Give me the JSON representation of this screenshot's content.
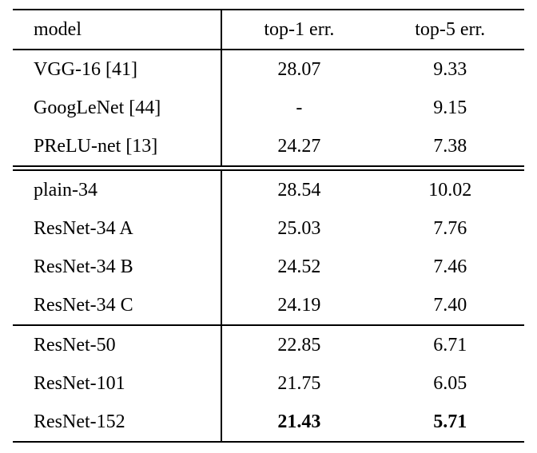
{
  "table": {
    "header": {
      "model": "model",
      "top1": "top-1 err.",
      "top5": "top-5 err."
    },
    "groups": [
      {
        "rows": [
          {
            "model": "VGG-16 [41]",
            "top1": "28.07",
            "top5": "9.33"
          },
          {
            "model": "GoogLeNet [44]",
            "top1": "-",
            "top5": "9.15"
          },
          {
            "model": "PReLU-net [13]",
            "top1": "24.27",
            "top5": "7.38"
          }
        ]
      },
      {
        "rows": [
          {
            "model": "plain-34",
            "top1": "28.54",
            "top5": "10.02"
          },
          {
            "model": "ResNet-34 A",
            "top1": "25.03",
            "top5": "7.76"
          },
          {
            "model": "ResNet-34 B",
            "top1": "24.52",
            "top5": "7.46"
          },
          {
            "model": "ResNet-34 C",
            "top1": "24.19",
            "top5": "7.40"
          }
        ]
      },
      {
        "rows": [
          {
            "model": "ResNet-50",
            "top1": "22.85",
            "top5": "6.71"
          },
          {
            "model": "ResNet-101",
            "top1": "21.75",
            "top5": "6.05"
          },
          {
            "model": "ResNet-152",
            "top1": "21.43",
            "top5": "5.71"
          }
        ]
      }
    ]
  },
  "chart_data": {
    "type": "table",
    "title": "",
    "columns": [
      "model",
      "top-1 err.",
      "top-5 err."
    ],
    "rows": [
      [
        "VGG-16 [41]",
        "28.07",
        "9.33"
      ],
      [
        "GoogLeNet [44]",
        "-",
        "9.15"
      ],
      [
        "PReLU-net [13]",
        "24.27",
        "7.38"
      ],
      [
        "plain-34",
        "28.54",
        "10.02"
      ],
      [
        "ResNet-34 A",
        "25.03",
        "7.76"
      ],
      [
        "ResNet-34 B",
        "24.52",
        "7.46"
      ],
      [
        "ResNet-34 C",
        "24.19",
        "7.40"
      ],
      [
        "ResNet-50",
        "22.85",
        "6.71"
      ],
      [
        "ResNet-101",
        "21.75",
        "6.05"
      ],
      [
        "ResNet-152",
        "21.43",
        "5.71"
      ]
    ]
  }
}
